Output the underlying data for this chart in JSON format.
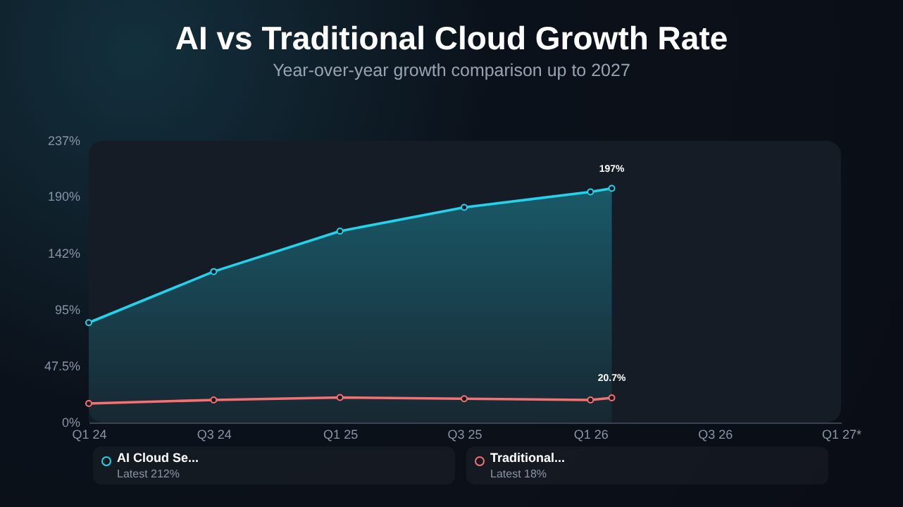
{
  "chart_data": {
    "type": "line",
    "title": "AI vs Traditional Cloud Growth Rate",
    "subtitle": "Year-over-year growth comparison up to 2027",
    "x": [
      "2024-01-01",
      "2024-07-01",
      "2025-01-01",
      "2025-07-01",
      "2026-01-01",
      "2026-02-01"
    ],
    "xlim": [
      "2024-01-01",
      "2027-01-01"
    ],
    "xticks": [
      {
        "value": "2024-01-01",
        "label": "Q1 24"
      },
      {
        "value": "2024-07-01",
        "label": "Q3 24"
      },
      {
        "value": "2025-01-01",
        "label": "Q1 25"
      },
      {
        "value": "2025-07-01",
        "label": "Q3 25"
      },
      {
        "value": "2026-01-01",
        "label": "Q1 26"
      },
      {
        "value": "2026-07-01",
        "label": "Q3 26"
      },
      {
        "value": "2027-01-01",
        "label": "Q1 27*"
      }
    ],
    "ylim": [
      0,
      237
    ],
    "yticks": [
      {
        "value": 0,
        "label": "0%"
      },
      {
        "value": 47.5,
        "label": "47.5%"
      },
      {
        "value": 95,
        "label": "95%"
      },
      {
        "value": 142,
        "label": "142%"
      },
      {
        "value": 190,
        "label": "190%"
      },
      {
        "value": 237,
        "label": "237%"
      }
    ],
    "series": [
      {
        "name": "AI Cloud Se...",
        "type": "area",
        "color": "#22d3ee",
        "values": [
          84,
          127,
          161,
          181,
          194,
          197
        ],
        "value_labels": [
          null,
          null,
          null,
          null,
          null,
          "197%"
        ]
      },
      {
        "name": "Traditional...",
        "color": "#f87171",
        "values": [
          16,
          19,
          21,
          20,
          19,
          20.7
        ],
        "value_labels": [
          null,
          null,
          null,
          null,
          null,
          "20.7%"
        ]
      }
    ],
    "annotations": [
      "Latest 212%",
      "Latest 18%"
    ],
    "marker": "circle",
    "grid": false,
    "legend": "bottom"
  }
}
